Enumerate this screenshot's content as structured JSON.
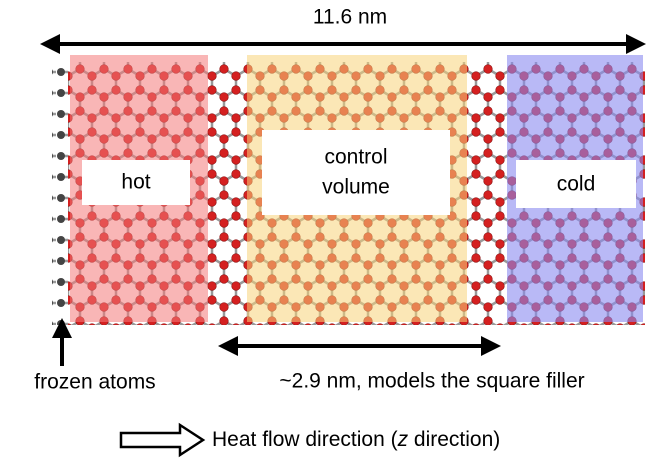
{
  "top_dimension": "11.6 nm",
  "regions": {
    "hot": "hot",
    "control_volume": [
      "control",
      "volume"
    ],
    "cold": "cold"
  },
  "frozen_label": "frozen atoms",
  "filler_dimension": "~2.9 nm, models the square filler",
  "heat_flow": {
    "before": "Heat flow direction (",
    "italic": "z",
    "after": " direction)"
  }
}
